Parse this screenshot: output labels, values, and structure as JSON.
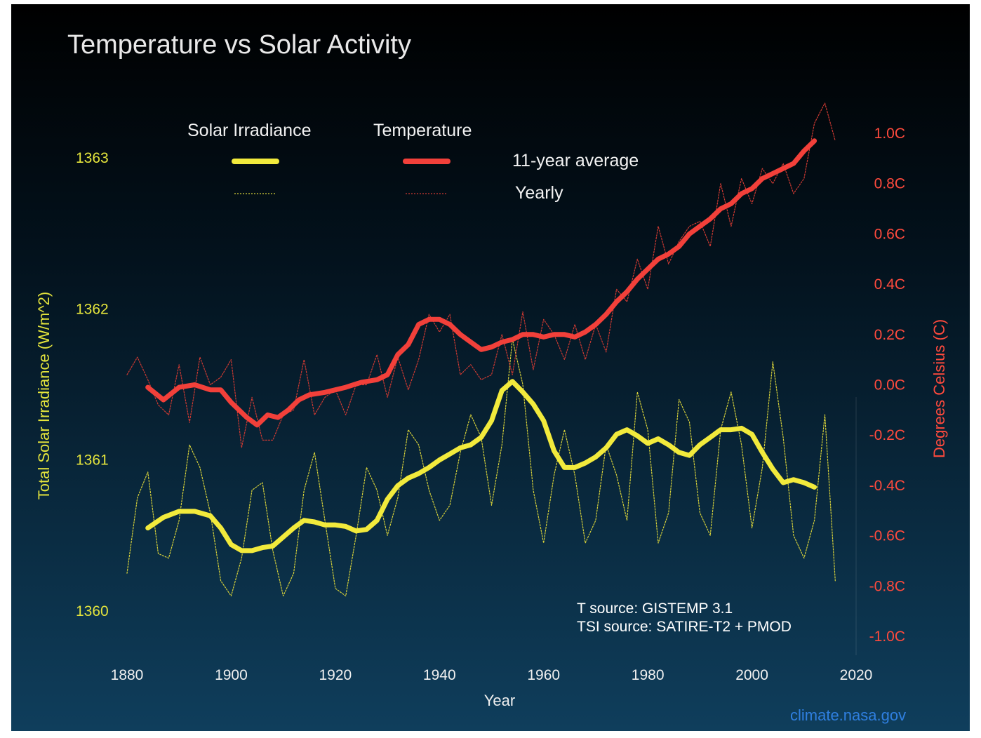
{
  "chart_data": {
    "type": "line",
    "title": "Temperature vs Solar Activity",
    "xlabel": "Year",
    "ylabel_left": "Total Solar Irradiance (W/m^2)",
    "ylabel_right": "Degrees Celsius (C)",
    "xlim": [
      1880,
      2020
    ],
    "ylim_left": [
      1360,
      1363
    ],
    "ylim_right": [
      -1.0,
      1.0
    ],
    "x_ticks": [
      "1880",
      "1900",
      "1920",
      "1940",
      "1960",
      "1980",
      "2000",
      "2020"
    ],
    "left_ticks": [
      {
        "label": "1363",
        "value": 1363
      },
      {
        "label": "1362",
        "value": 1362
      },
      {
        "label": "1361",
        "value": 1361
      },
      {
        "label": "1360",
        "value": 1360
      }
    ],
    "right_ticks": [
      {
        "label": "1.0C",
        "value": 1.0
      },
      {
        "label": "0.8C",
        "value": 0.8
      },
      {
        "label": "0.6C",
        "value": 0.6
      },
      {
        "label": "0.4C",
        "value": 0.4
      },
      {
        "label": "0.2C",
        "value": 0.2
      },
      {
        "label": "0.0C",
        "value": 0.0
      },
      {
        "label": "-0.2C",
        "value": -0.2
      },
      {
        "label": "-0.4C",
        "value": -0.4
      },
      {
        "label": "-0.6C",
        "value": -0.6
      },
      {
        "label": "-0.8C",
        "value": -0.8
      },
      {
        "label": "-1.0C",
        "value": -1.0
      }
    ],
    "legend": {
      "headers": [
        "Solar Irradiance",
        "Temperature"
      ],
      "rows": [
        "11-year average",
        "Yearly"
      ]
    },
    "series": [
      {
        "name": "11-year average",
        "group": "Solar Irradiance",
        "axis": "left",
        "style": "solid-thick",
        "color": "#f2ea3c",
        "x": [
          1884,
          1887,
          1890,
          1893,
          1896,
          1898,
          1900,
          1902,
          1904,
          1906,
          1908,
          1910,
          1912,
          1914,
          1916,
          1918,
          1920,
          1922,
          1924,
          1926,
          1928,
          1930,
          1932,
          1934,
          1936,
          1938,
          1940,
          1942,
          1944,
          1946,
          1948,
          1950,
          1952,
          1954,
          1956,
          1958,
          1960,
          1962,
          1964,
          1966,
          1968,
          1970,
          1972,
          1974,
          1976,
          1978,
          1980,
          1982,
          1984,
          1986,
          1988,
          1990,
          1992,
          1994,
          1996,
          1998,
          2000,
          2002,
          2004,
          2006,
          2008,
          2010,
          2012
        ],
        "values": [
          1360.55,
          1360.62,
          1360.66,
          1360.66,
          1360.63,
          1360.55,
          1360.44,
          1360.4,
          1360.4,
          1360.42,
          1360.43,
          1360.49,
          1360.55,
          1360.6,
          1360.59,
          1360.57,
          1360.57,
          1360.56,
          1360.53,
          1360.54,
          1360.6,
          1360.74,
          1360.83,
          1360.88,
          1360.91,
          1360.95,
          1361.0,
          1361.04,
          1361.08,
          1361.1,
          1361.15,
          1361.26,
          1361.46,
          1361.52,
          1361.45,
          1361.37,
          1361.26,
          1361.06,
          1360.95,
          1360.95,
          1360.98,
          1361.02,
          1361.08,
          1361.17,
          1361.2,
          1361.16,
          1361.11,
          1361.14,
          1361.1,
          1361.05,
          1361.03,
          1361.1,
          1361.15,
          1361.2,
          1361.2,
          1361.21,
          1361.17,
          1361.05,
          1360.94,
          1360.85,
          1360.87,
          1360.85,
          1360.82
        ]
      },
      {
        "name": "Yearly",
        "group": "Solar Irradiance",
        "axis": "left",
        "style": "dotted-thin",
        "color": "#d8d23a",
        "x": [
          1880,
          1882,
          1884,
          1886,
          1888,
          1890,
          1892,
          1894,
          1896,
          1898,
          1900,
          1902,
          1904,
          1906,
          1908,
          1910,
          1912,
          1914,
          1916,
          1918,
          1920,
          1922,
          1924,
          1926,
          1928,
          1930,
          1932,
          1934,
          1936,
          1938,
          1940,
          1942,
          1944,
          1946,
          1948,
          1950,
          1952,
          1954,
          1956,
          1958,
          1960,
          1962,
          1964,
          1966,
          1968,
          1970,
          1972,
          1974,
          1976,
          1978,
          1980,
          1982,
          1984,
          1986,
          1988,
          1990,
          1992,
          1994,
          1996,
          1998,
          2000,
          2002,
          2004,
          2006,
          2008,
          2010,
          2012,
          2014,
          2016
        ],
        "values": [
          1360.25,
          1360.75,
          1360.92,
          1360.38,
          1360.35,
          1360.6,
          1361.1,
          1360.95,
          1360.65,
          1360.2,
          1360.1,
          1360.35,
          1360.8,
          1360.85,
          1360.4,
          1360.1,
          1360.25,
          1360.8,
          1361.05,
          1360.6,
          1360.15,
          1360.1,
          1360.5,
          1360.95,
          1360.8,
          1360.5,
          1360.75,
          1361.2,
          1361.1,
          1360.8,
          1360.6,
          1360.7,
          1361.05,
          1361.3,
          1361.15,
          1360.7,
          1361.1,
          1361.8,
          1361.5,
          1360.8,
          1360.45,
          1360.9,
          1361.2,
          1360.9,
          1360.45,
          1360.6,
          1361.1,
          1360.9,
          1360.6,
          1361.45,
          1361.2,
          1360.45,
          1360.65,
          1361.4,
          1361.25,
          1360.65,
          1360.5,
          1361.2,
          1361.45,
          1361.1,
          1360.55,
          1360.95,
          1361.65,
          1361.15,
          1360.5,
          1360.35,
          1360.6,
          1361.3,
          1360.2
        ]
      },
      {
        "name": "11-year average",
        "group": "Temperature",
        "axis": "right",
        "style": "solid-thick",
        "color": "#f2403a",
        "x": [
          1884,
          1887,
          1890,
          1893,
          1896,
          1898,
          1900,
          1903,
          1905,
          1907,
          1909,
          1911,
          1913,
          1915,
          1918,
          1920,
          1922,
          1925,
          1928,
          1930,
          1932,
          1934,
          1936,
          1938,
          1940,
          1942,
          1944,
          1946,
          1948,
          1950,
          1952,
          1954,
          1956,
          1958,
          1960,
          1962,
          1964,
          1966,
          1968,
          1970,
          1972,
          1974,
          1976,
          1978,
          1980,
          1982,
          1984,
          1986,
          1988,
          1990,
          1992,
          1994,
          1996,
          1998,
          2000,
          2002,
          2004,
          2006,
          2008,
          2010,
          2012
        ],
        "values": [
          -0.01,
          -0.06,
          -0.01,
          0.0,
          -0.02,
          -0.02,
          -0.07,
          -0.13,
          -0.16,
          -0.12,
          -0.13,
          -0.1,
          -0.06,
          -0.04,
          -0.03,
          -0.02,
          -0.01,
          0.01,
          0.02,
          0.04,
          0.12,
          0.16,
          0.24,
          0.26,
          0.26,
          0.24,
          0.2,
          0.17,
          0.14,
          0.15,
          0.17,
          0.18,
          0.2,
          0.2,
          0.19,
          0.2,
          0.2,
          0.19,
          0.21,
          0.24,
          0.28,
          0.33,
          0.37,
          0.42,
          0.46,
          0.5,
          0.52,
          0.55,
          0.6,
          0.63,
          0.66,
          0.7,
          0.72,
          0.76,
          0.78,
          0.82,
          0.84,
          0.86,
          0.88,
          0.93,
          0.97
        ]
      },
      {
        "name": "Yearly",
        "group": "Temperature",
        "axis": "right",
        "style": "dotted-thin",
        "color": "#d03a32",
        "x": [
          1880,
          1882,
          1884,
          1886,
          1888,
          1890,
          1892,
          1894,
          1896,
          1898,
          1900,
          1902,
          1904,
          1906,
          1908,
          1910,
          1912,
          1914,
          1916,
          1918,
          1920,
          1922,
          1924,
          1926,
          1928,
          1930,
          1932,
          1934,
          1936,
          1938,
          1940,
          1942,
          1944,
          1946,
          1948,
          1950,
          1952,
          1954,
          1956,
          1958,
          1960,
          1962,
          1964,
          1966,
          1968,
          1970,
          1972,
          1974,
          1976,
          1978,
          1980,
          1982,
          1984,
          1986,
          1988,
          1990,
          1992,
          1994,
          1996,
          1998,
          2000,
          2002,
          2004,
          2006,
          2008,
          2010,
          2012,
          2014,
          2016
        ],
        "values": [
          0.04,
          0.11,
          0.02,
          -0.08,
          -0.12,
          0.08,
          -0.15,
          0.11,
          0.0,
          0.03,
          0.1,
          -0.25,
          -0.05,
          -0.22,
          -0.22,
          -0.12,
          -0.1,
          0.1,
          -0.12,
          -0.05,
          -0.02,
          -0.12,
          0.0,
          0.0,
          0.12,
          -0.05,
          0.11,
          -0.02,
          0.1,
          0.28,
          0.21,
          0.28,
          0.04,
          0.08,
          0.02,
          0.04,
          0.2,
          0.04,
          0.29,
          0.06,
          0.26,
          0.2,
          0.1,
          0.24,
          0.1,
          0.24,
          0.13,
          0.38,
          0.33,
          0.5,
          0.38,
          0.63,
          0.48,
          0.57,
          0.63,
          0.65,
          0.55,
          0.8,
          0.63,
          0.82,
          0.72,
          0.86,
          0.8,
          0.88,
          0.76,
          0.82,
          1.04,
          1.12,
          0.97
        ]
      }
    ]
  },
  "annotations": {
    "sources": [
      "T source: GISTEMP 3.1",
      "TSI source: SATIRE-T2 + PMOD"
    ],
    "credit": "climate.nasa.gov"
  },
  "colors": {
    "background_top": "#000000",
    "background_bottom": "#0f3e5c",
    "solar": "#f2ea3c",
    "temperature": "#f2403a",
    "credit": "#2f7fe0"
  }
}
